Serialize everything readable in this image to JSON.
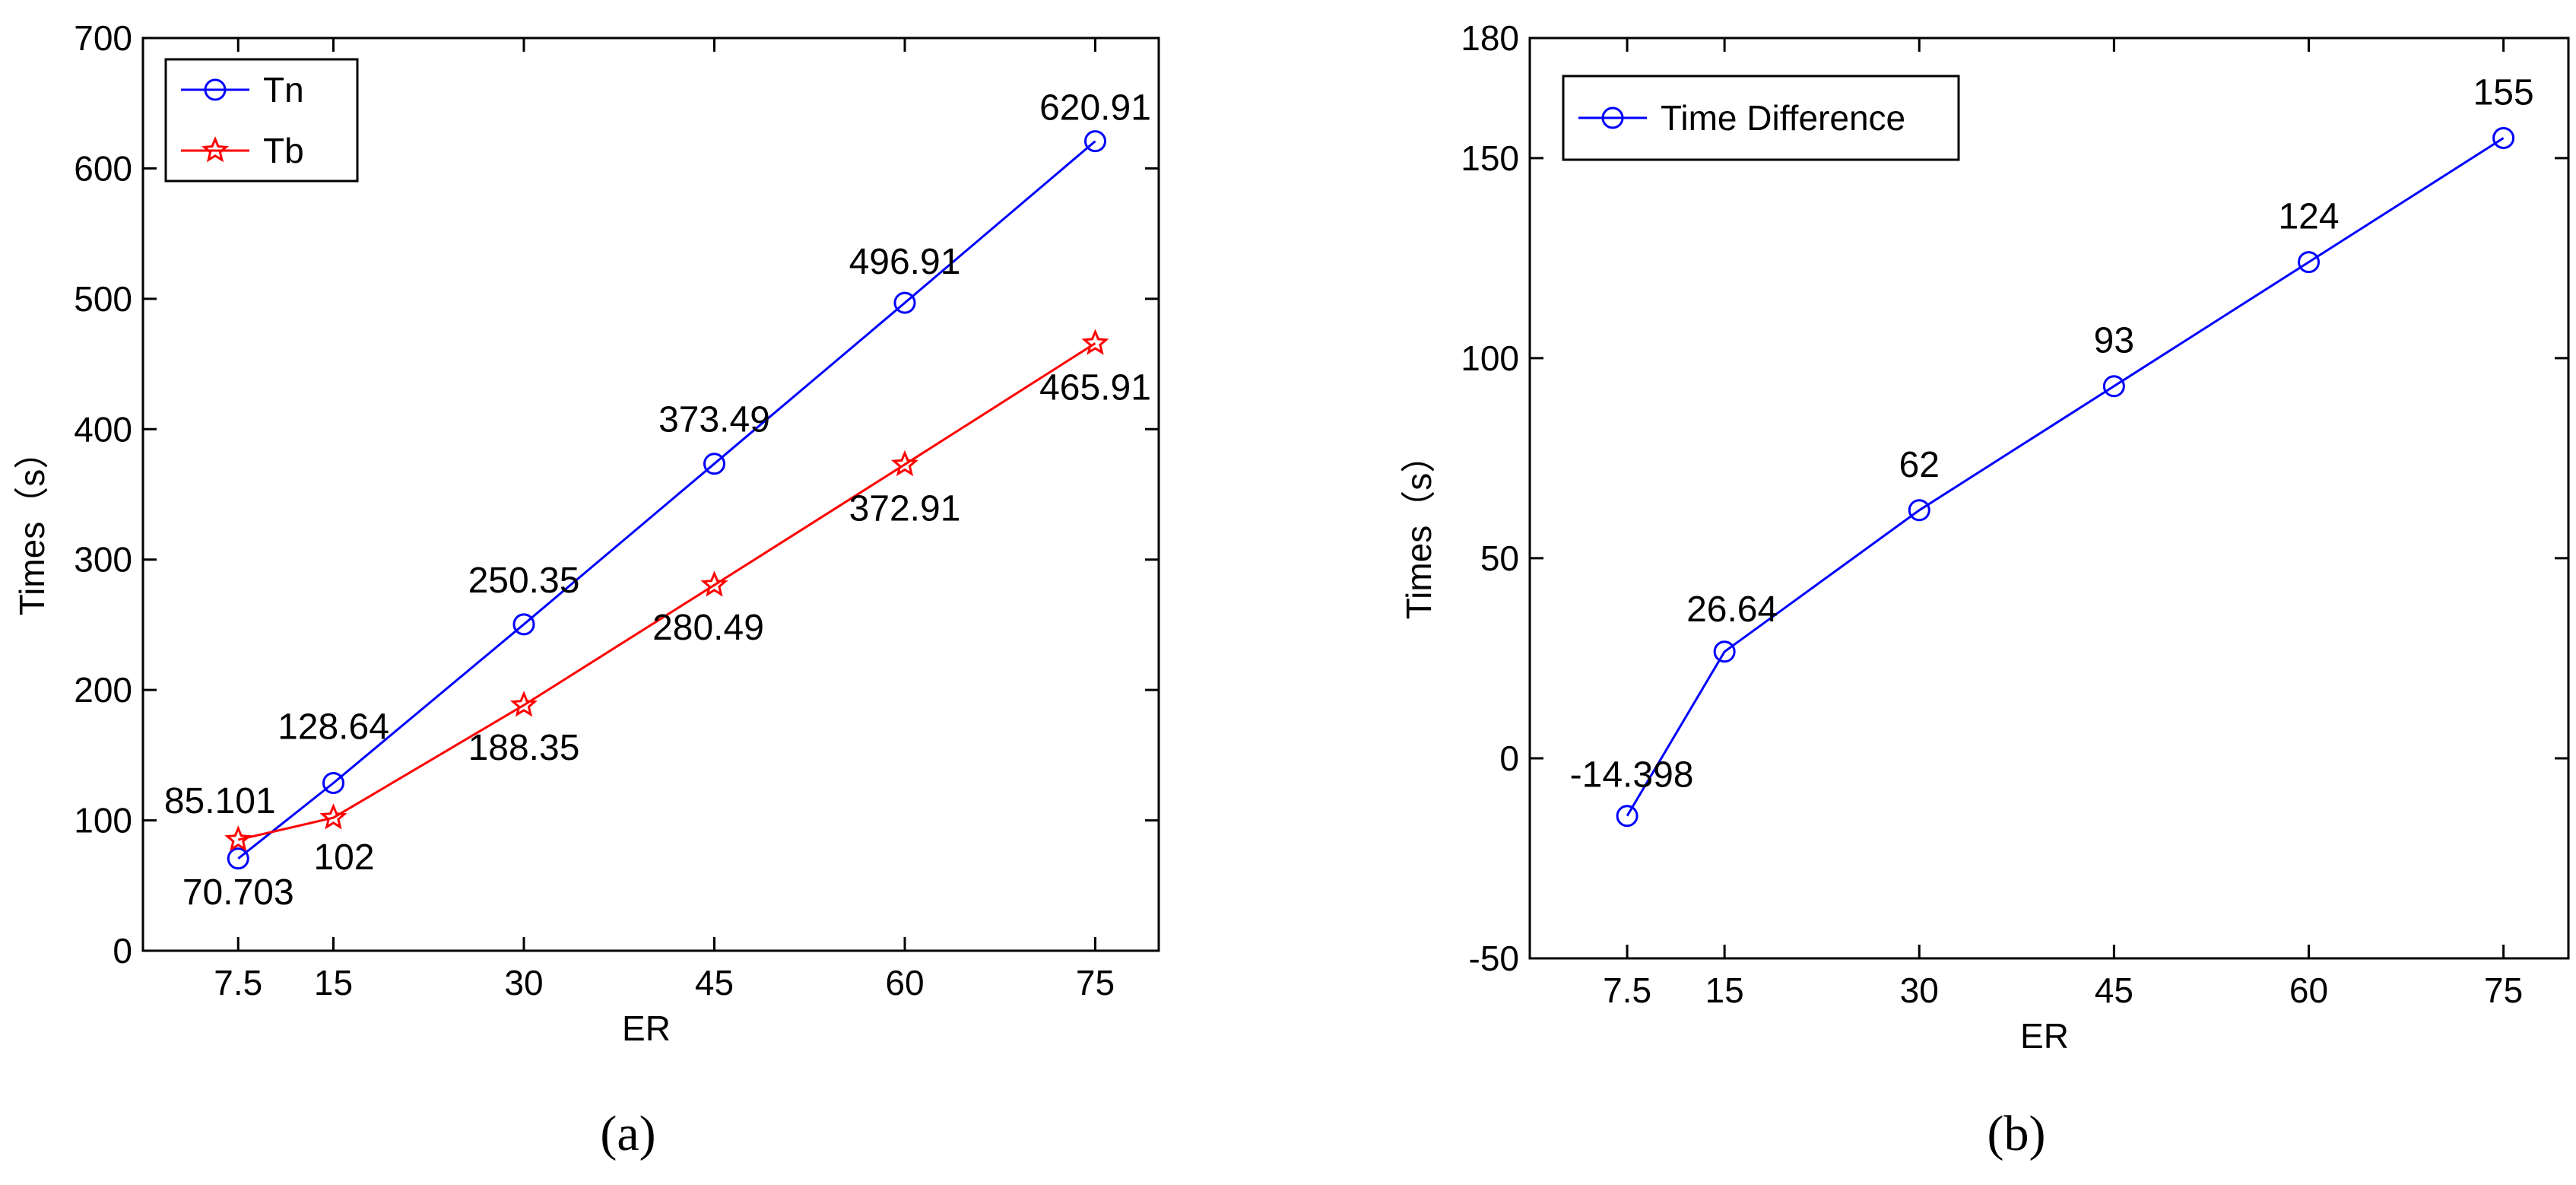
{
  "chart_data": [
    {
      "panel_label": "a",
      "type": "line",
      "xlabel": "ER",
      "ylabel": "Times（s）",
      "x": [
        7.5,
        15,
        30,
        45,
        60,
        75
      ],
      "xticks": [
        "7.5",
        "15",
        "30",
        "45",
        "60",
        "75"
      ],
      "xlim": [
        0,
        80
      ],
      "ylim": [
        0,
        700
      ],
      "yticks": [
        0,
        100,
        200,
        300,
        400,
        500,
        600,
        700
      ],
      "legend_position": "top-left",
      "series": [
        {
          "name": "Tn",
          "color": "#0000ff",
          "marker": "circle",
          "values": [
            70.703,
            128.64,
            250.35,
            373.49,
            496.91,
            620.91
          ],
          "labels": [
            "70.703",
            "128.64",
            "250.35",
            "373.49",
            "496.91",
            "620.91"
          ]
        },
        {
          "name": "Tb",
          "color": "#ff0000",
          "marker": "star",
          "values": [
            85.101,
            102,
            188.35,
            280.49,
            372.91,
            465.91
          ],
          "labels": [
            "85.101",
            "102",
            "188.35",
            "280.49",
            "372.91",
            "465.91"
          ]
        }
      ]
    },
    {
      "panel_label": "b",
      "type": "line",
      "xlabel": "ER",
      "ylabel": "Times（s）",
      "x": [
        7.5,
        15,
        30,
        45,
        60,
        75
      ],
      "xticks": [
        "7.5",
        "15",
        "30",
        "45",
        "60",
        "75"
      ],
      "xlim": [
        0,
        80
      ],
      "ylim": [
        -50,
        180
      ],
      "yticks": [
        -50,
        0,
        50,
        100,
        150,
        180
      ],
      "legend_position": "top-left",
      "series": [
        {
          "name": "Time Difference",
          "color": "#0000ff",
          "marker": "circle",
          "values": [
            -14.398,
            26.64,
            62,
            93,
            124,
            155
          ],
          "labels": [
            "-14.398",
            "26.64",
            "62",
            "93",
            "124",
            "155"
          ]
        }
      ]
    }
  ],
  "captions": [
    "(a)",
    "(b)"
  ]
}
